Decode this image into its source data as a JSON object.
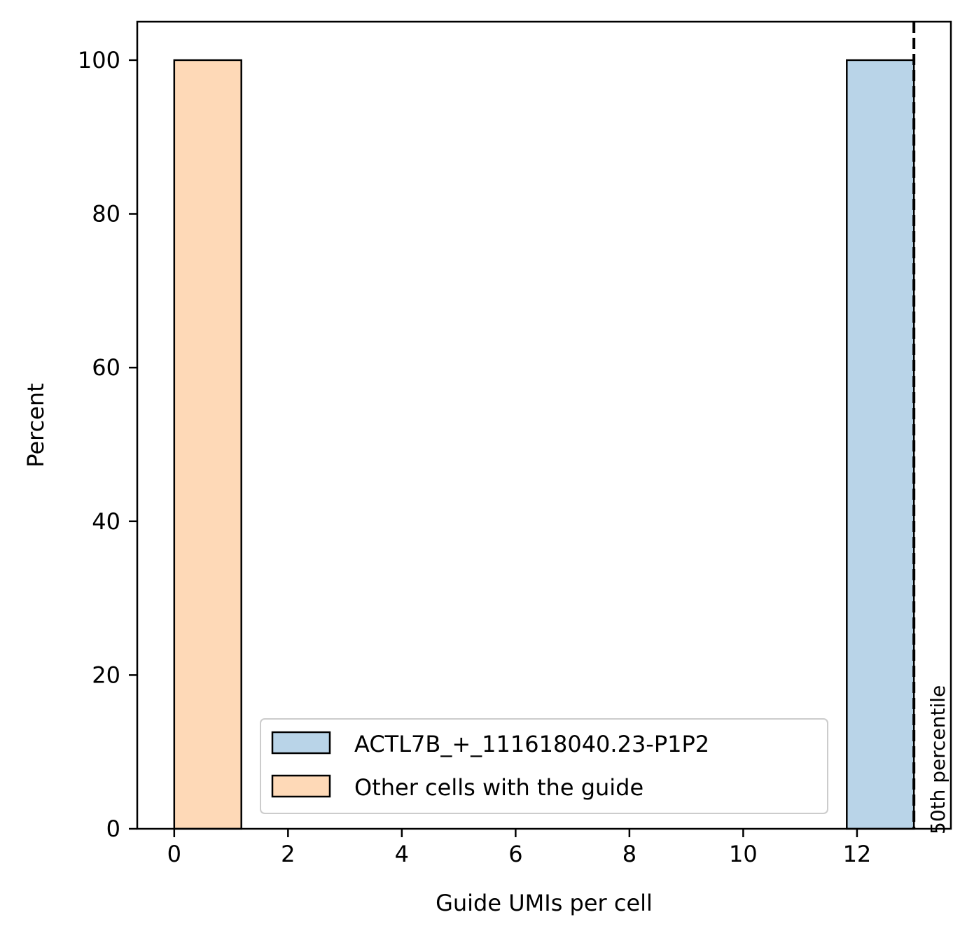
{
  "chart_data": {
    "type": "bar",
    "xlabel": "Guide UMIs per cell",
    "ylabel": "Percent",
    "xlim": [
      -0.65,
      13.65
    ],
    "ylim": [
      0,
      105
    ],
    "xticks": [
      "0",
      "2",
      "4",
      "6",
      "8",
      "10",
      "12"
    ],
    "yticks": [
      "0",
      "20",
      "40",
      "60",
      "80",
      "100"
    ],
    "grid": false,
    "legend_position": "lower center",
    "series": [
      {
        "name": "ACTL7B_+_111618040.23-P1P2",
        "color": "#b9d4e8",
        "bins": [
          {
            "x_start": 11.82,
            "x_end": 13.0,
            "value": 100
          }
        ]
      },
      {
        "name": "Other cells with the guide",
        "color": "#fed9b7",
        "bins": [
          {
            "x_start": 0.0,
            "x_end": 1.18,
            "value": 100
          }
        ]
      }
    ],
    "annotations": [
      {
        "type": "vertical-dashed-line",
        "x": 13.0,
        "label": "50th percentile"
      }
    ]
  }
}
